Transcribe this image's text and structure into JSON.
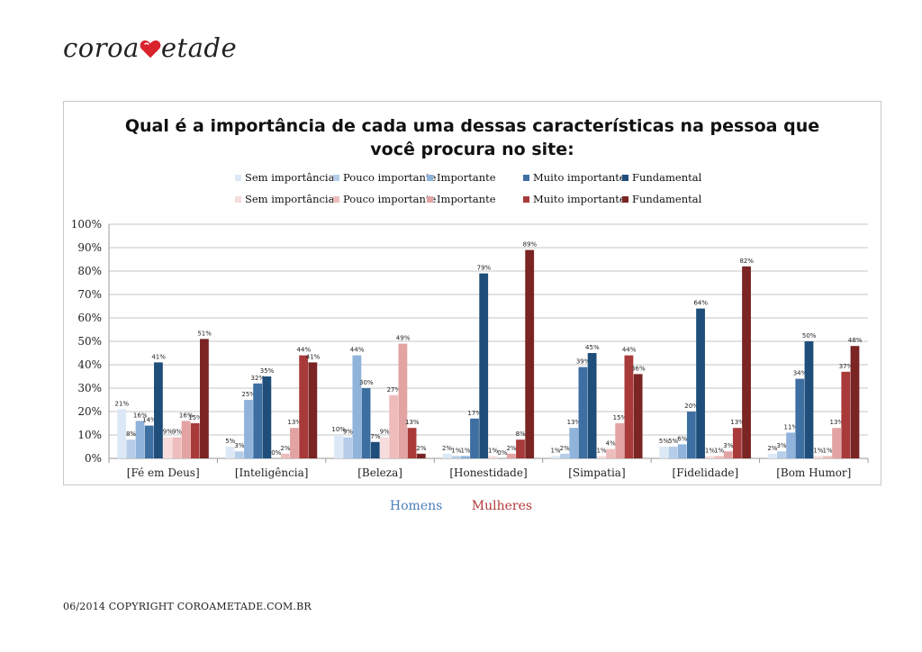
{
  "brand": {
    "part1": "coroa",
    "part2": "etade"
  },
  "footer": "06/2014 COPYRIGHT COROAMETADE.COM.BR",
  "group_legend": [
    {
      "label": "Homens",
      "color": "#4a7ebb"
    },
    {
      "label": "Mulheres",
      "color": "#b33a3a"
    }
  ],
  "chart_data": {
    "type": "bar",
    "title_line1": "Qual é a importância de cada uma dessas características na pessoa que",
    "title_line2": "você procura no site:",
    "categories": [
      "[Fé em Deus]",
      "[Inteligência]",
      "[Beleza]",
      "[Honestidade]",
      "[Simpatia]",
      "[Fidelidade]",
      "[Bom Humor]"
    ],
    "ylim": [
      0,
      100
    ],
    "yticks": [
      "0%",
      "10%",
      "20%",
      "30%",
      "40%",
      "50%",
      "60%",
      "70%",
      "80%",
      "90%",
      "100%"
    ],
    "grid": true,
    "legend_position": "top",
    "series": [
      {
        "name": "Sem importância",
        "group": "Homens",
        "color": "#dce8f5",
        "values": [
          21,
          5,
          10,
          2,
          1,
          5,
          2
        ]
      },
      {
        "name": "Pouco importante",
        "group": "Homens",
        "color": "#b5cde8",
        "values": [
          8,
          3,
          9,
          1,
          2,
          5,
          3
        ]
      },
      {
        "name": "Importante",
        "group": "Homens",
        "color": "#8fb3db",
        "values": [
          16,
          25,
          44,
          1,
          13,
          6,
          11
        ]
      },
      {
        "name": "Muito importante",
        "group": "Homens",
        "color": "#3d6fa3",
        "values": [
          14,
          32,
          30,
          17,
          39,
          20,
          34
        ]
      },
      {
        "name": "Fundamental",
        "group": "Homens",
        "color": "#1f4e7a",
        "values": [
          41,
          35,
          7,
          79,
          45,
          64,
          50
        ]
      },
      {
        "name": "Sem importância",
        "group": "Mulheres",
        "color": "#f6dcdc",
        "values": [
          9,
          0,
          9,
          1,
          1,
          1,
          1
        ]
      },
      {
        "name": "Pouco importante",
        "group": "Mulheres",
        "color": "#eebcbc",
        "values": [
          9,
          2,
          27,
          0,
          4,
          1,
          1
        ]
      },
      {
        "name": "Importante",
        "group": "Mulheres",
        "color": "#e3a3a3",
        "values": [
          16,
          13,
          49,
          2,
          15,
          3,
          13
        ]
      },
      {
        "name": "Muito importante",
        "group": "Mulheres",
        "color": "#a83a3a",
        "values": [
          15,
          44,
          13,
          8,
          44,
          13,
          37
        ]
      },
      {
        "name": "Fundamental",
        "group": "Mulheres",
        "color": "#7a2424",
        "values": [
          51,
          41,
          2,
          89,
          36,
          82,
          48
        ]
      }
    ]
  }
}
